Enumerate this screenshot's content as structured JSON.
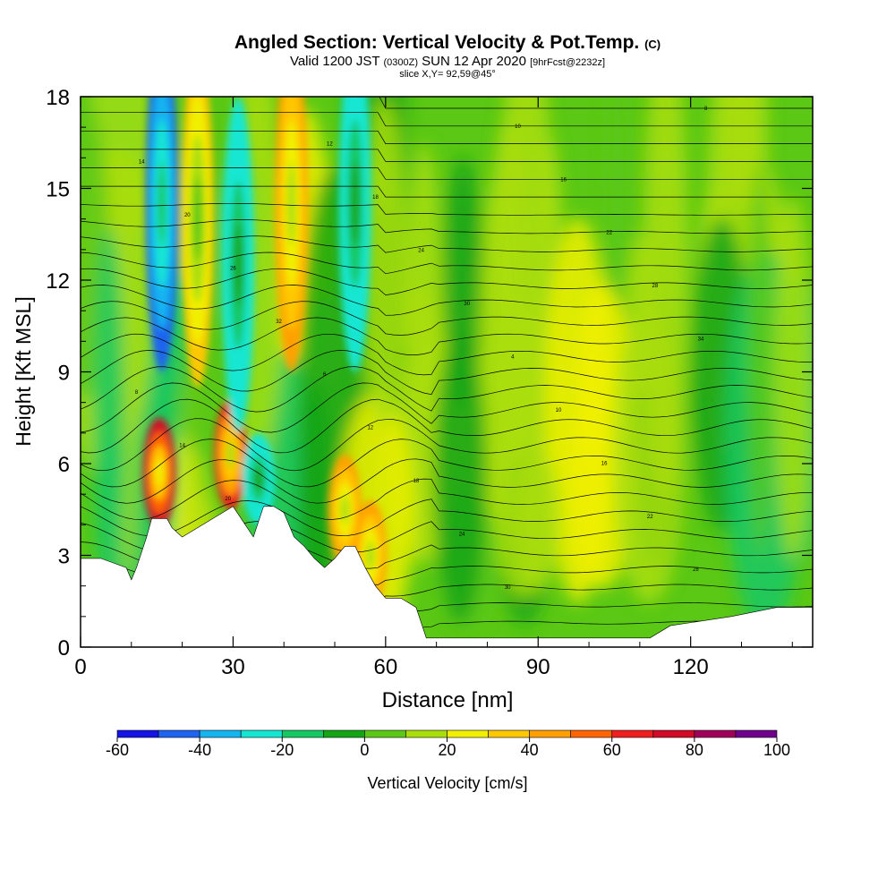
{
  "header": {
    "title_main": "Angled Section: Vertical Velocity & Pot.Temp.",
    "title_unit": "(C)",
    "valid_pre": "Valid 1200 JST",
    "valid_zulu": "(0300Z)",
    "valid_date": "SUN 12 Apr 2020",
    "valid_fcst": "[9hrFcst@2232z]",
    "slice": "slice X,Y= 92,59@45°"
  },
  "chart_data": {
    "type": "heatmap",
    "title": "Angled Section: Vertical Velocity & Pot.Temp. (C)",
    "xlabel": "Distance [nm]",
    "ylabel": "Height [Kft MSL]",
    "xlim": [
      0,
      144
    ],
    "ylim": [
      0,
      18
    ],
    "xticks": [
      0,
      30,
      60,
      90,
      120
    ],
    "yticks": [
      0,
      3,
      6,
      9,
      12,
      15,
      18
    ],
    "colorbar": {
      "label": "Vertical Velocity [cm/s]",
      "min": -60,
      "max": 100,
      "step": 10,
      "tick_labels": [
        -60,
        -40,
        -20,
        0,
        20,
        40,
        60,
        80,
        100
      ],
      "colors": [
        "#1414e6",
        "#1e64f0",
        "#14b4f0",
        "#14e6d2",
        "#14c864",
        "#14a514",
        "#5ac814",
        "#aade0a",
        "#f0f000",
        "#ffc800",
        "#ffa000",
        "#ff6400",
        "#f01e1e",
        "#d20a28",
        "#a0005a",
        "#6e008c"
      ]
    },
    "terrain_profile": {
      "x": [
        0,
        4,
        9,
        10,
        11,
        13,
        14,
        17,
        18,
        20,
        25,
        30,
        32,
        34,
        36,
        38,
        40,
        42,
        44,
        46,
        48,
        50,
        52,
        54,
        56,
        58,
        60,
        63,
        66,
        68,
        72,
        80,
        90,
        100,
        112,
        116,
        128,
        137,
        144
      ],
      "height": [
        2.9,
        2.9,
        2.6,
        2.2,
        2.6,
        3.6,
        4.2,
        4.2,
        3.9,
        3.6,
        4.1,
        4.6,
        4.1,
        3.6,
        4.6,
        4.6,
        4.4,
        3.6,
        3.3,
        2.9,
        2.6,
        2.9,
        3.3,
        3.3,
        2.6,
        2.0,
        1.6,
        1.6,
        1.3,
        0.3,
        0.3,
        0.3,
        0.3,
        0.3,
        0.3,
        0.7,
        1.0,
        1.3,
        1.3
      ]
    },
    "updraft_cores": [
      {
        "x": 15.5,
        "height": 5.7,
        "value": 70
      },
      {
        "x": 29.5,
        "height": 6.3,
        "value": 60
      },
      {
        "x": 41.5,
        "height": 14.5,
        "value": 40
      },
      {
        "x": 23,
        "height": 14.0,
        "value": 30
      },
      {
        "x": 52,
        "height": 4.5,
        "value": 40
      },
      {
        "x": 57,
        "height": 3.0,
        "value": 40
      }
    ],
    "downdraft_cores": [
      {
        "x": 16,
        "height": 14.5,
        "value": -50
      },
      {
        "x": 31,
        "height": 12.5,
        "value": -30
      },
      {
        "x": 54,
        "height": 14.5,
        "value": -30
      },
      {
        "x": 35,
        "height": 5.5,
        "value": -30
      }
    ],
    "theta_contour_labels": [
      "34",
      "32",
      "30",
      "28",
      "26",
      "24",
      "22",
      "20",
      "18",
      "16",
      "14",
      "12",
      "10",
      "8",
      "6",
      "4"
    ]
  }
}
